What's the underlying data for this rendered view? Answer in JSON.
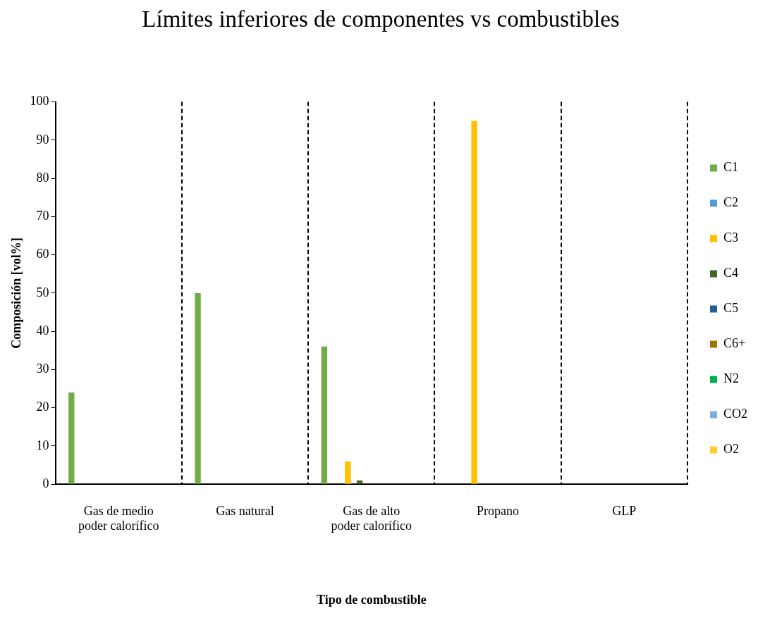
{
  "chart_data": {
    "type": "bar",
    "title": "Límites inferiores de componentes vs combustibles",
    "xlabel": "Tipo de combustible",
    "ylabel": "Composición [vol%]",
    "categories": [
      "Gas de medio\npoder calorífico",
      "Gas natural",
      "Gas de alto\npoder calorífico",
      "Propano",
      "GLP"
    ],
    "series": [
      {
        "name": "C1",
        "color": "#70ad47",
        "values": [
          24,
          50,
          36,
          0,
          0
        ]
      },
      {
        "name": "C2",
        "color": "#5b9bd5",
        "values": [
          0,
          0,
          0,
          0,
          0
        ]
      },
      {
        "name": "C3",
        "color": "#ffc000",
        "values": [
          0,
          0,
          6,
          95,
          0
        ]
      },
      {
        "name": "C4",
        "color": "#43682b",
        "values": [
          0,
          0,
          1,
          0,
          0
        ]
      },
      {
        "name": "C5",
        "color": "#255e91",
        "values": [
          0,
          0,
          0,
          0,
          0
        ]
      },
      {
        "name": "C6+",
        "color": "#9e7400",
        "values": [
          0,
          0,
          0,
          0,
          0
        ]
      },
      {
        "name": "N2",
        "color": "#00b050",
        "values": [
          0,
          0,
          0,
          0,
          0
        ]
      },
      {
        "name": "CO2",
        "color": "#7cafdd",
        "values": [
          0,
          0,
          0,
          0,
          0
        ]
      },
      {
        "name": "O2",
        "color": "#ffcd33",
        "values": [
          0,
          0,
          0,
          0,
          0
        ]
      }
    ],
    "ylim": [
      0,
      100
    ],
    "yticks": [
      0,
      10,
      20,
      30,
      40,
      50,
      60,
      70,
      80,
      90,
      100
    ],
    "grid": "x",
    "legend": "right"
  }
}
